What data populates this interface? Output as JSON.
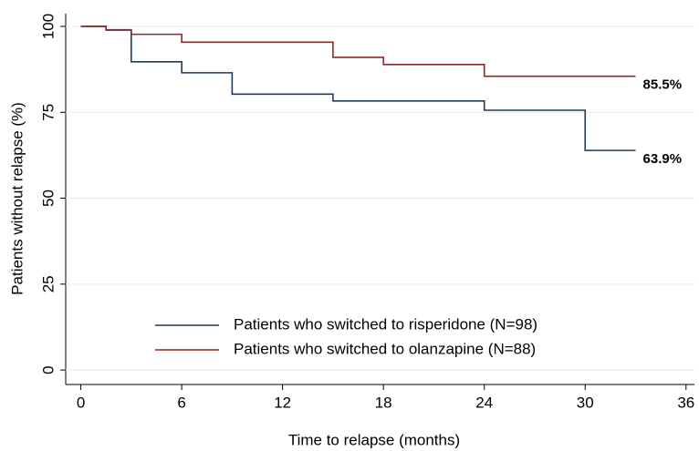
{
  "chart_data": {
    "type": "step",
    "x_label": "Time to relapse (months)",
    "y_label": "Patients without relapse (%)",
    "xlim": [
      -0.9,
      36.5
    ],
    "xticks": [
      0,
      6,
      12,
      18,
      24,
      30,
      36
    ],
    "ylim": [
      -4.2,
      103.7
    ],
    "yticks": [
      0,
      25,
      50,
      75,
      100
    ],
    "grid": true,
    "legend": "bottom-left",
    "series": [
      {
        "name": "Patients who switched to risperidone (N=98)",
        "color": "#1f3a5a",
        "x": [
          0,
          1.5,
          3,
          6,
          9,
          15,
          24,
          30,
          33
        ],
        "values": [
          100,
          99,
          89.7,
          86.5,
          80.3,
          78.3,
          75.6,
          63.9,
          63.9
        ],
        "value_labels": [
          null,
          null,
          null,
          null,
          null,
          null,
          null,
          null,
          "63.9%"
        ]
      },
      {
        "name": "Patients who switched to olanzapine (N=88)",
        "color": "#8b2a2a",
        "x": [
          0,
          1.5,
          3,
          6,
          15,
          18,
          24,
          33
        ],
        "values": [
          100,
          98.9,
          97.7,
          95.4,
          91,
          88.9,
          85.5,
          85.5
        ],
        "value_labels": [
          null,
          null,
          null,
          null,
          null,
          null,
          null,
          "85.5%"
        ]
      }
    ]
  }
}
